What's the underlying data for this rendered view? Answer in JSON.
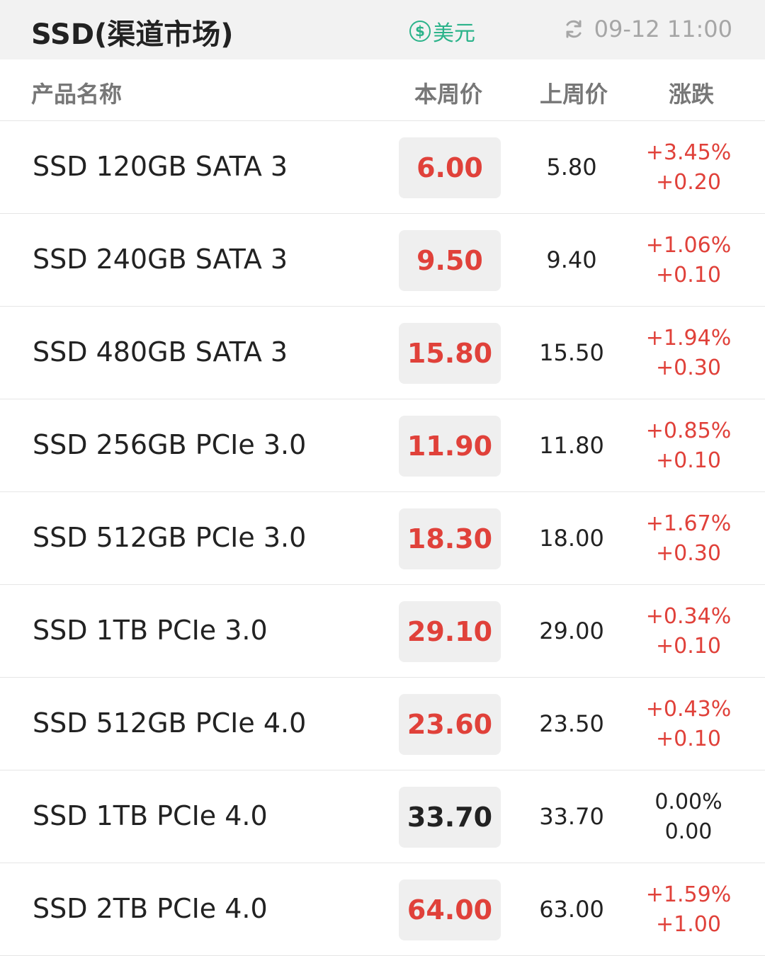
{
  "header": {
    "title": "SSD(渠道市场)",
    "currency_symbol": "$",
    "currency_label": "美元",
    "timestamp": "09-12 11:00",
    "icons": [
      "dollar-coin-icon",
      "refresh-icon"
    ]
  },
  "columns": {
    "name": "产品名称",
    "this_week": "本周价",
    "last_week": "上周价",
    "change": "涨跌"
  },
  "colors": {
    "up": "#e0413a",
    "flat": "#222222",
    "accent": "#2bb38a"
  },
  "rows": [
    {
      "name": "SSD 120GB SATA 3",
      "this_week": "6.00",
      "last_week": "5.80",
      "change_pct": "+3.45%",
      "change_abs": "+0.20",
      "trend": "up"
    },
    {
      "name": "SSD 240GB SATA 3",
      "this_week": "9.50",
      "last_week": "9.40",
      "change_pct": "+1.06%",
      "change_abs": "+0.10",
      "trend": "up"
    },
    {
      "name": "SSD 480GB SATA 3",
      "this_week": "15.80",
      "last_week": "15.50",
      "change_pct": "+1.94%",
      "change_abs": "+0.30",
      "trend": "up"
    },
    {
      "name": "SSD 256GB PCIe 3.0",
      "this_week": "11.90",
      "last_week": "11.80",
      "change_pct": "+0.85%",
      "change_abs": "+0.10",
      "trend": "up"
    },
    {
      "name": "SSD 512GB PCIe 3.0",
      "this_week": "18.30",
      "last_week": "18.00",
      "change_pct": "+1.67%",
      "change_abs": "+0.30",
      "trend": "up"
    },
    {
      "name": "SSD 1TB PCIe 3.0",
      "this_week": "29.10",
      "last_week": "29.00",
      "change_pct": "+0.34%",
      "change_abs": "+0.10",
      "trend": "up"
    },
    {
      "name": "SSD 512GB PCIe 4.0",
      "this_week": "23.60",
      "last_week": "23.50",
      "change_pct": "+0.43%",
      "change_abs": "+0.10",
      "trend": "up"
    },
    {
      "name": "SSD 1TB PCIe 4.0",
      "this_week": "33.70",
      "last_week": "33.70",
      "change_pct": "0.00%",
      "change_abs": "0.00",
      "trend": "flat"
    },
    {
      "name": "SSD 2TB PCIe 4.0",
      "this_week": "64.00",
      "last_week": "63.00",
      "change_pct": "+1.59%",
      "change_abs": "+1.00",
      "trend": "up"
    }
  ]
}
